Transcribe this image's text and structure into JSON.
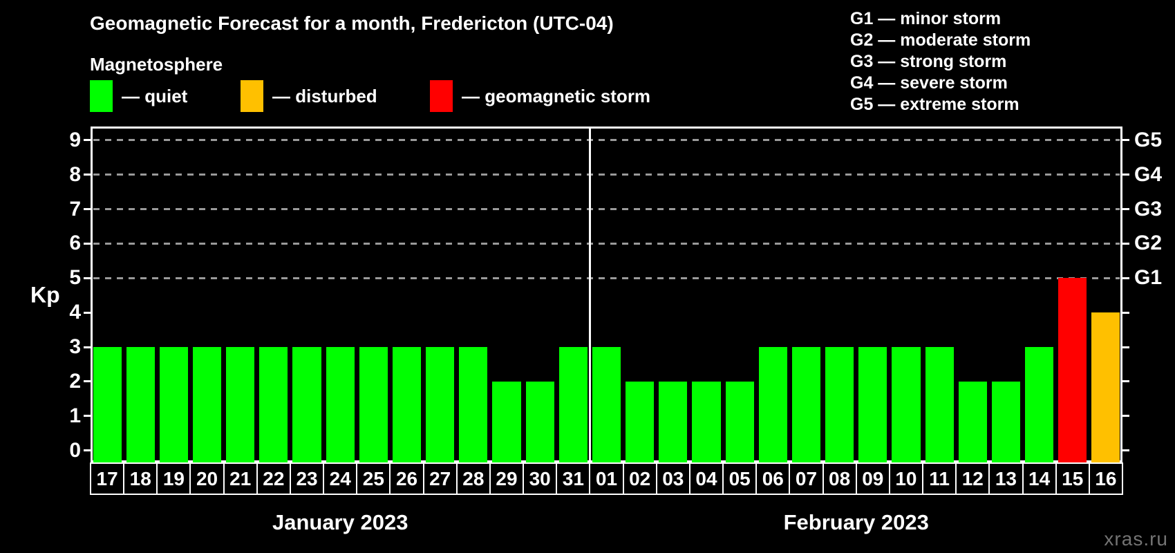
{
  "title": "Geomagnetic Forecast for a month, Fredericton (UTC-04)",
  "legend": {
    "title": "Magnetosphere",
    "items": [
      {
        "name": "quiet",
        "label": "— quiet",
        "color": "#00ff00"
      },
      {
        "name": "disturbed",
        "label": "— disturbed",
        "color": "#ffc000"
      },
      {
        "name": "storm",
        "label": "— geomagnetic storm",
        "color": "#ff0000"
      }
    ]
  },
  "storm_scale": [
    "G1 — minor storm",
    "G2 — moderate storm",
    "G3 — strong storm",
    "G4 — severe storm",
    "G5 — extreme storm"
  ],
  "watermark": "xras.ru",
  "chart_data": {
    "type": "bar",
    "title": "Geomagnetic Forecast for a month, Fredericton (UTC-04)",
    "xlabel": "",
    "ylabel": "Kp",
    "ylim": [
      0,
      9
    ],
    "y_ticks": [
      0,
      1,
      2,
      3,
      4,
      5,
      6,
      7,
      8,
      9
    ],
    "grid": "dashed horizontal gridlines at Kp 5-9 only",
    "legend_position": "top-left",
    "right_axis_labels": [
      {
        "label": "G1",
        "kp": 5
      },
      {
        "label": "G2",
        "kp": 6
      },
      {
        "label": "G3",
        "kp": 7
      },
      {
        "label": "G4",
        "kp": 8
      },
      {
        "label": "G5",
        "kp": 9
      }
    ],
    "color_rule": {
      "quiet_below_kp": 4,
      "disturbed_at_kp": 4,
      "storm_at_kp": 5
    },
    "colors": {
      "quiet": "#00ff00",
      "disturbed": "#ffc000",
      "storm": "#ff0000"
    },
    "months": [
      {
        "label": "January 2023",
        "categories": [
          "17",
          "18",
          "19",
          "20",
          "21",
          "22",
          "23",
          "24",
          "25",
          "26",
          "27",
          "28",
          "29",
          "30",
          "31"
        ],
        "values": [
          3,
          3,
          3,
          3,
          3,
          3,
          3,
          3,
          3,
          3,
          3,
          3,
          2,
          2,
          3
        ]
      },
      {
        "label": "February 2023",
        "categories": [
          "01",
          "02",
          "03",
          "04",
          "05",
          "06",
          "07",
          "08",
          "09",
          "10",
          "11",
          "12",
          "13",
          "14",
          "15",
          "16"
        ],
        "values": [
          3,
          2,
          2,
          2,
          2,
          3,
          3,
          3,
          3,
          3,
          3,
          2,
          2,
          3,
          5,
          4
        ]
      }
    ]
  }
}
